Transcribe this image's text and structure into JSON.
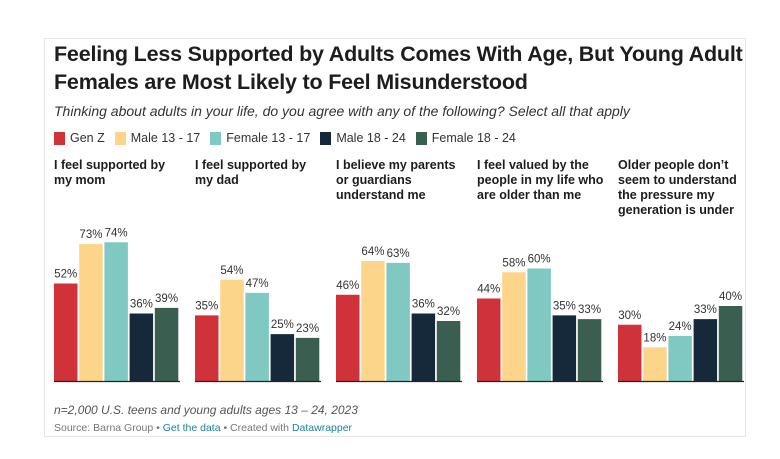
{
  "header": {
    "title": "Feeling Less Supported by Adults Comes With Age, But Young Adult Females are Most Likely to Feel Misunderstood",
    "subtitle": "Thinking about adults in your life, do you agree with any of the following? Select all that apply"
  },
  "footer": {
    "notes": "n=2,000 U.S. teens and young adults ages 13 – 24, 2023",
    "source_prefix": "Source: Barna Group",
    "sep": " • ",
    "get_data": "Get the data",
    "created_with": "Created with ",
    "datawrapper": "Datawrapper"
  },
  "chart_data": {
    "type": "bar",
    "title": "Feeling Less Supported by Adults Comes With Age, But Young Adult Females are Most Likely to Feel Misunderstood",
    "legend_position": "top-left",
    "series_names": [
      "Gen Z",
      "Male 13 - 17",
      "Female 13 - 17",
      "Male 18 - 24",
      "Female 18 - 24"
    ],
    "colors": [
      "#d0323a",
      "#fdd58a",
      "#80c9c2",
      "#16293a",
      "#3a5f50"
    ],
    "ylim": [
      0,
      100
    ],
    "value_suffix": "%",
    "panels": [
      {
        "title": "I feel supported by my mom",
        "values": [
          52,
          73,
          74,
          36,
          39
        ]
      },
      {
        "title": "I feel supported by my dad",
        "values": [
          35,
          54,
          47,
          25,
          23
        ]
      },
      {
        "title": "I believe my parents or guardians understand me",
        "values": [
          46,
          64,
          63,
          36,
          32
        ]
      },
      {
        "title": "I feel valued by the people in my life who are older than me",
        "values": [
          44,
          58,
          60,
          35,
          33
        ]
      },
      {
        "title": "Older people don’t seem to understand the pressure my generation is under",
        "values": [
          30,
          18,
          24,
          33,
          40
        ]
      }
    ]
  }
}
